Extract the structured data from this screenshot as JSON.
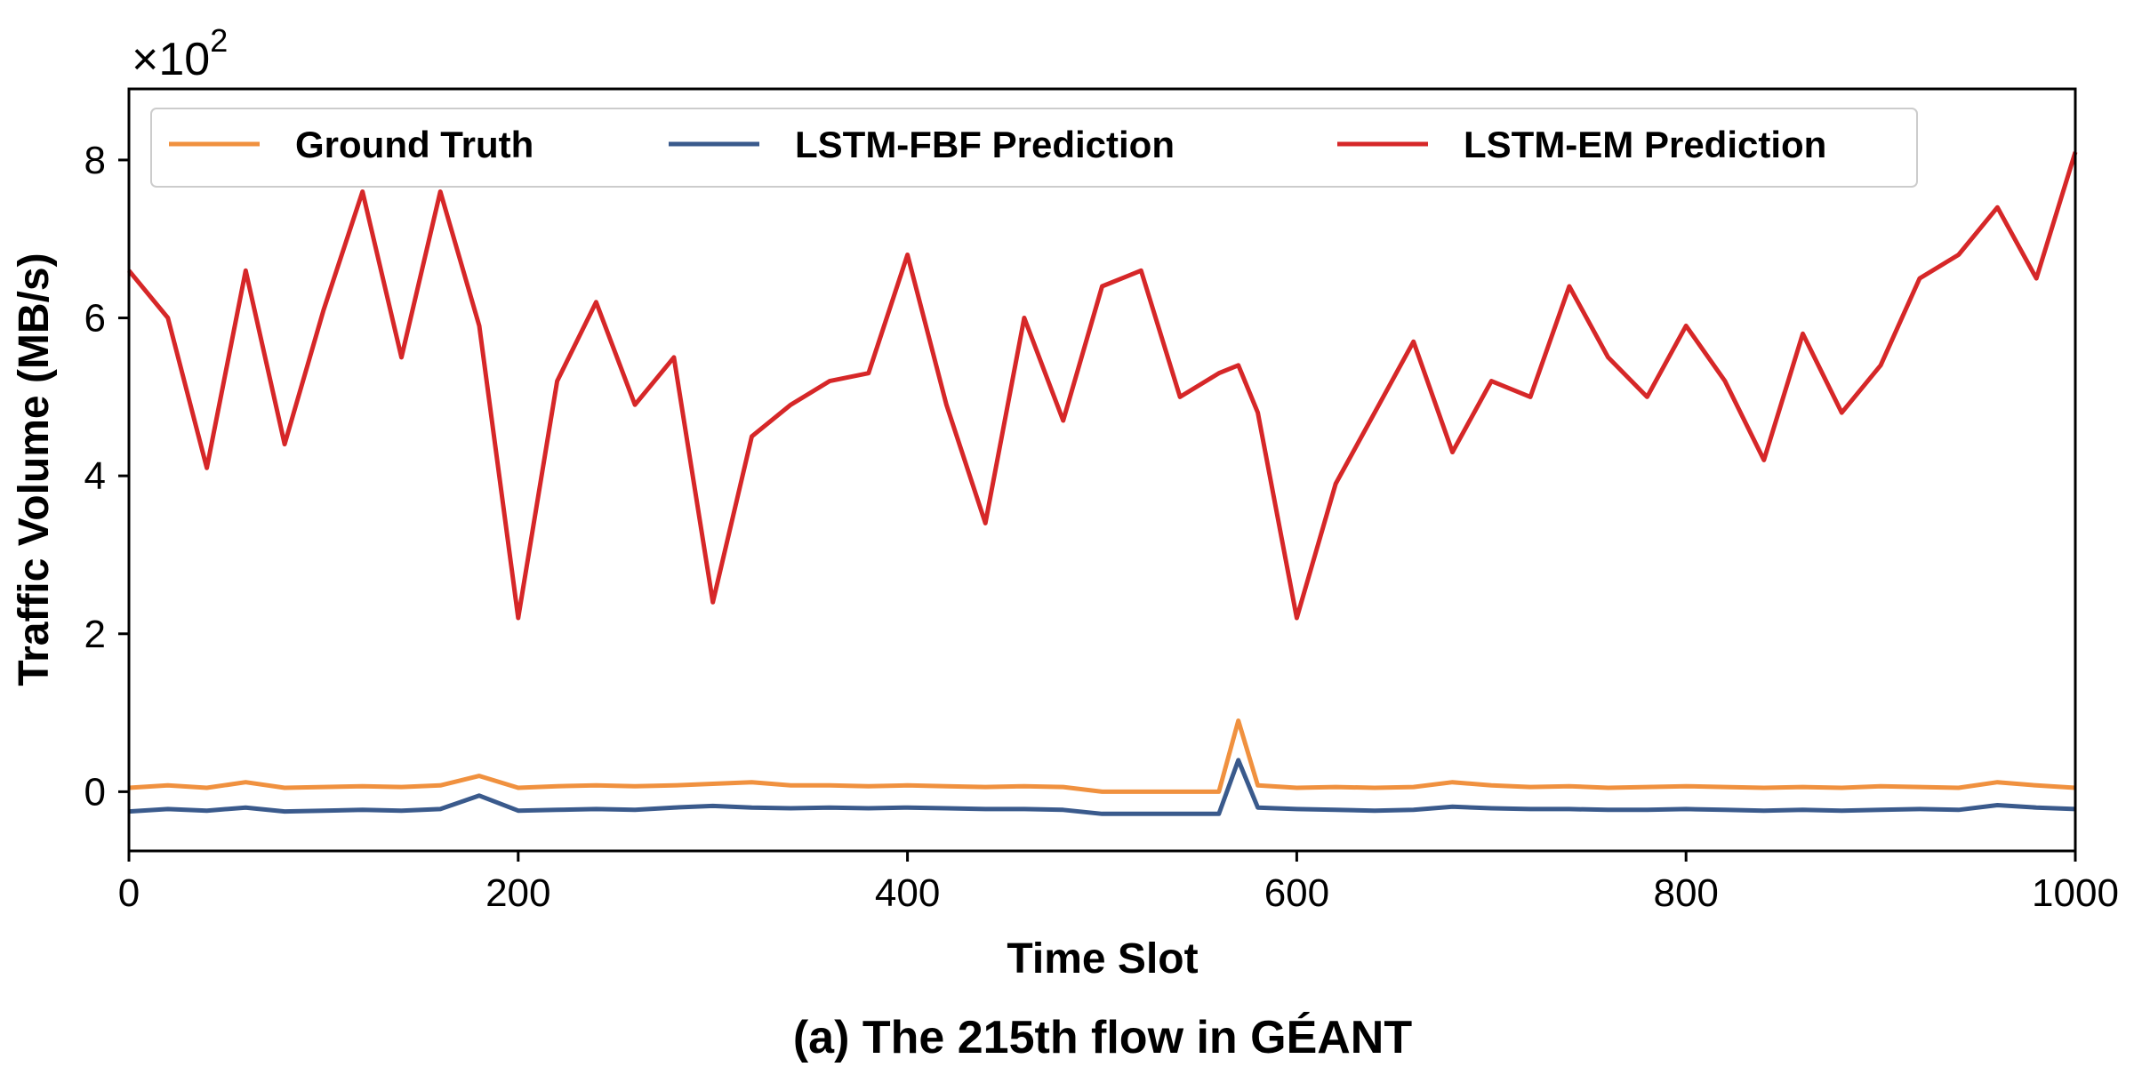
{
  "caption": "(a) The 215th flow in GÉANT",
  "chart_data": {
    "type": "line",
    "title": "",
    "xlabel": "Time Slot",
    "ylabel": "Traffic Volume (MB/s)",
    "y_scale_factor": "×10^2",
    "xlim": [
      0,
      1000
    ],
    "ylim": [
      -0.75,
      8.9
    ],
    "xticks": [
      0,
      200,
      400,
      600,
      800,
      1000
    ],
    "xtick_labels": [
      "0",
      "200",
      "400",
      "600",
      "800",
      "1000"
    ],
    "yticks": [
      0,
      2,
      4,
      6,
      8
    ],
    "ytick_labels": [
      "0",
      "2",
      "4",
      "6",
      "8"
    ],
    "grid": false,
    "legend_position": "top-left",
    "legend_layout": "horizontal",
    "x": [
      0,
      20,
      40,
      60,
      80,
      100,
      120,
      140,
      160,
      180,
      200,
      220,
      240,
      260,
      280,
      300,
      320,
      340,
      360,
      380,
      400,
      420,
      440,
      460,
      480,
      500,
      520,
      540,
      560,
      570,
      580,
      600,
      620,
      640,
      660,
      680,
      700,
      720,
      740,
      760,
      780,
      800,
      820,
      840,
      860,
      880,
      900,
      920,
      940,
      960,
      980,
      1000
    ],
    "series": [
      {
        "name": "Ground Truth",
        "color": "#F0913F",
        "values": [
          0.05,
          0.08,
          0.05,
          0.12,
          0.05,
          0.06,
          0.07,
          0.06,
          0.08,
          0.2,
          0.05,
          0.07,
          0.08,
          0.07,
          0.08,
          0.1,
          0.12,
          0.08,
          0.08,
          0.07,
          0.08,
          0.07,
          0.06,
          0.07,
          0.06,
          0.0,
          0.0,
          0.0,
          0.0,
          0.9,
          0.08,
          0.05,
          0.06,
          0.05,
          0.06,
          0.12,
          0.08,
          0.06,
          0.07,
          0.05,
          0.06,
          0.07,
          0.06,
          0.05,
          0.06,
          0.05,
          0.07,
          0.06,
          0.05,
          0.12,
          0.08,
          0.05
        ]
      },
      {
        "name": "LSTM-FBF Prediction",
        "color": "#3A5A8C",
        "values": [
          -0.25,
          -0.22,
          -0.24,
          -0.2,
          -0.25,
          -0.24,
          -0.23,
          -0.24,
          -0.22,
          -0.05,
          -0.24,
          -0.23,
          -0.22,
          -0.23,
          -0.2,
          -0.18,
          -0.2,
          -0.21,
          -0.2,
          -0.21,
          -0.2,
          -0.21,
          -0.22,
          -0.22,
          -0.23,
          -0.28,
          -0.28,
          -0.28,
          -0.28,
          0.4,
          -0.2,
          -0.22,
          -0.23,
          -0.24,
          -0.23,
          -0.19,
          -0.21,
          -0.22,
          -0.22,
          -0.23,
          -0.23,
          -0.22,
          -0.23,
          -0.24,
          -0.23,
          -0.24,
          -0.23,
          -0.22,
          -0.23,
          -0.17,
          -0.2,
          -0.22
        ]
      },
      {
        "name": "LSTM-EM Prediction",
        "color": "#D62728",
        "values": [
          6.6,
          6.0,
          4.1,
          6.6,
          4.4,
          6.1,
          7.6,
          5.5,
          7.6,
          5.9,
          2.2,
          5.2,
          6.2,
          4.9,
          5.5,
          2.4,
          4.5,
          4.9,
          5.2,
          5.3,
          6.8,
          4.9,
          3.4,
          6.0,
          4.7,
          6.4,
          6.6,
          5.0,
          5.3,
          5.4,
          4.8,
          2.2,
          3.9,
          4.8,
          5.7,
          4.3,
          5.2,
          5.0,
          6.4,
          5.5,
          5.0,
          5.9,
          5.2,
          4.2,
          5.8,
          4.8,
          5.4,
          6.5,
          6.8,
          7.4,
          6.5,
          8.1
        ]
      }
    ]
  }
}
